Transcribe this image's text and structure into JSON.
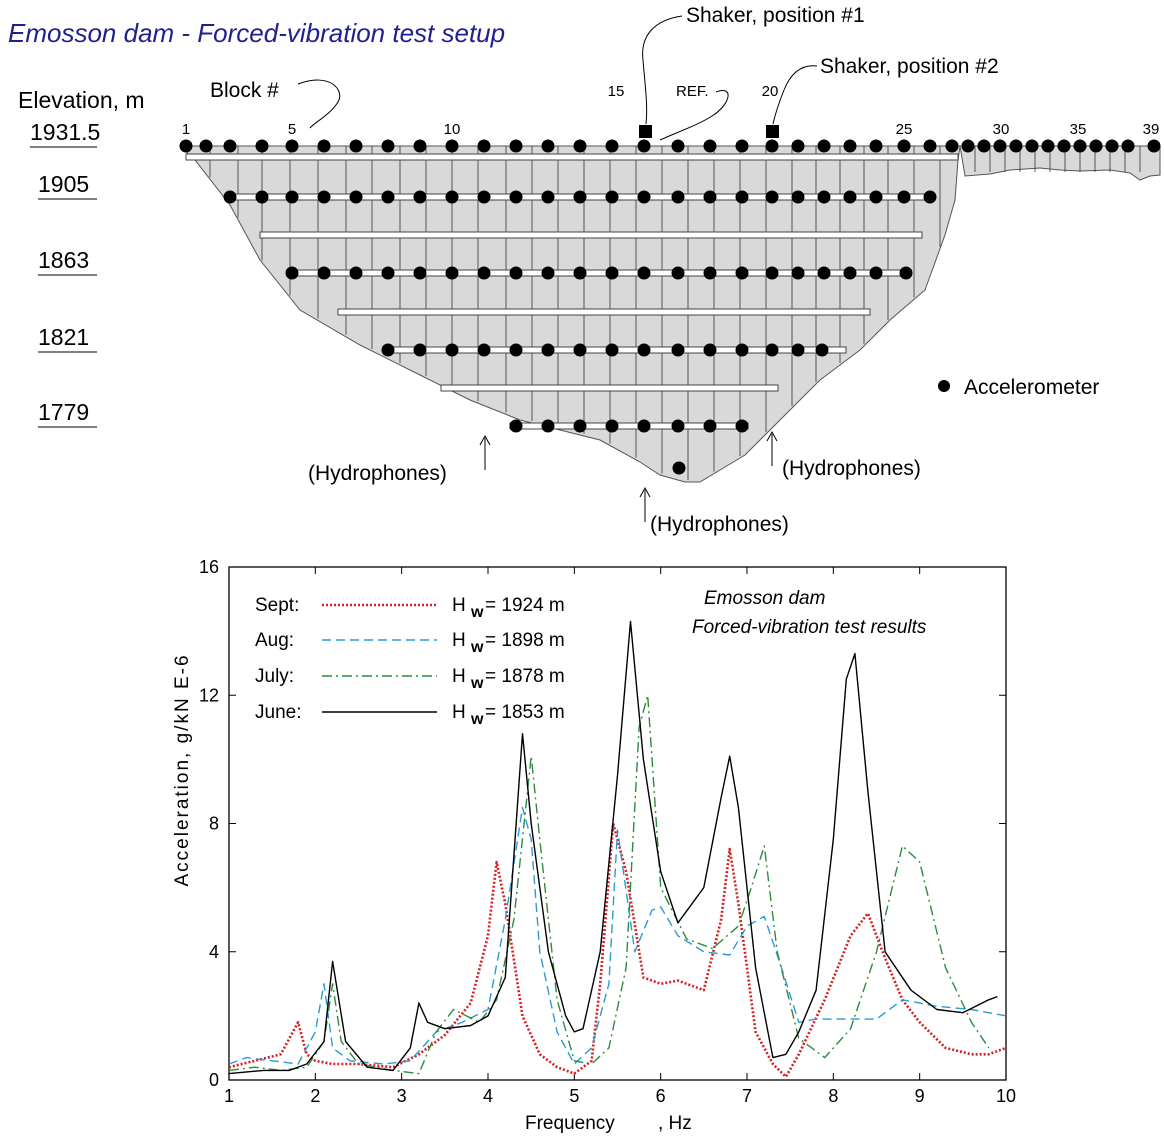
{
  "diagram": {
    "title": "Emosson dam - Forced-vibration test setup",
    "elevation_header": "Elevation, m",
    "elevations": [
      "1931.5",
      "1905",
      "1863",
      "1821",
      "1779"
    ],
    "block_label": "Block #",
    "block_numbers": [
      "1",
      "5",
      "10",
      "15",
      "20",
      "25",
      "30",
      "35",
      "39"
    ],
    "ref_label": "REF.",
    "shaker1_label": "Shaker, position #1",
    "shaker2_label": "Shaker, position #2",
    "hydrophones_label": "(Hydrophones)",
    "accelerometer_legend": "Accelerometer",
    "colors": {
      "dam_fill": "#d9d9d9",
      "title": "#1f1f8f"
    }
  },
  "chart_data": {
    "type": "line",
    "title": "Emosson dam",
    "subtitle": "Forced-vibration test results",
    "xlabel": "Frequency",
    "xunit": ", Hz",
    "ylabel": "Acceleration, g/kN  E-6",
    "xlim": [
      1,
      10
    ],
    "ylim": [
      0,
      16
    ],
    "xticks": [
      1,
      2,
      3,
      4,
      5,
      6,
      7,
      8,
      9,
      10
    ],
    "yticks": [
      0,
      4,
      8,
      12,
      16
    ],
    "grid": false,
    "legend_position": "top-left",
    "series": [
      {
        "name": "Sept:",
        "label_main": "H",
        "label_sub": "w",
        "label_rest": " = 1924 m",
        "color": "#d42020",
        "style": "dotted",
        "x": [
          1,
          1.3,
          1.6,
          1.8,
          1.9,
          2.0,
          2.2,
          2.5,
          2.9,
          3.2,
          3.5,
          3.8,
          4.0,
          4.1,
          4.2,
          4.4,
          4.6,
          4.8,
          5.0,
          5.2,
          5.3,
          5.45,
          5.6,
          5.8,
          6.0,
          6.2,
          6.5,
          6.7,
          6.8,
          6.9,
          7.1,
          7.3,
          7.45,
          7.6,
          7.9,
          8.2,
          8.4,
          8.6,
          8.8,
          9.0,
          9.3,
          9.6,
          9.8,
          10.0
        ],
        "y": [
          0.4,
          0.6,
          0.8,
          1.8,
          0.8,
          0.6,
          0.5,
          0.5,
          0.4,
          0.8,
          1.4,
          2.4,
          4.5,
          6.8,
          5.5,
          2.0,
          0.8,
          0.4,
          0.2,
          0.6,
          3.0,
          8.0,
          6.5,
          3.2,
          3.0,
          3.1,
          2.8,
          5.0,
          7.2,
          5.5,
          1.5,
          0.5,
          0.1,
          0.8,
          2.5,
          4.5,
          5.2,
          3.8,
          2.5,
          1.8,
          1.0,
          0.8,
          0.8,
          1.0
        ]
      },
      {
        "name": "Aug:",
        "label_main": "H",
        "label_sub": "w",
        "label_rest": " = 1898 m",
        "color": "#2b9bd0",
        "style": "dashed",
        "x": [
          1,
          1.2,
          1.5,
          1.8,
          2.0,
          2.1,
          2.2,
          2.4,
          2.8,
          3.1,
          3.4,
          3.7,
          4.0,
          4.2,
          4.4,
          4.5,
          4.6,
          4.8,
          5.0,
          5.2,
          5.4,
          5.5,
          5.7,
          5.9,
          6.0,
          6.2,
          6.5,
          6.8,
          7.0,
          7.2,
          7.4,
          7.6,
          7.8,
          8.2,
          8.5,
          8.8,
          9.2,
          9.6,
          10.0
        ],
        "y": [
          0.5,
          0.7,
          0.6,
          0.5,
          1.5,
          3.0,
          1.0,
          0.6,
          0.5,
          0.6,
          1.5,
          1.8,
          2.2,
          5.0,
          8.5,
          7.5,
          4.0,
          1.5,
          0.5,
          1.0,
          3.0,
          7.8,
          4.0,
          5.3,
          5.4,
          4.5,
          4.0,
          3.9,
          4.8,
          5.1,
          3.5,
          1.8,
          1.9,
          1.9,
          1.9,
          2.5,
          2.3,
          2.2,
          2.0
        ]
      },
      {
        "name": "July:",
        "label_main": "H",
        "label_sub": "w",
        "label_rest": " = 1878 m",
        "color": "#2e8b3e",
        "style": "dashdot",
        "x": [
          1,
          1.3,
          1.6,
          1.9,
          2.1,
          2.2,
          2.3,
          2.5,
          2.9,
          3.2,
          3.4,
          3.6,
          3.9,
          4.1,
          4.3,
          4.5,
          4.6,
          4.8,
          5.0,
          5.2,
          5.4,
          5.6,
          5.75,
          5.85,
          6.0,
          6.3,
          6.6,
          6.9,
          7.05,
          7.2,
          7.35,
          7.6,
          7.9,
          8.2,
          8.5,
          8.8,
          9.0,
          9.3,
          9.6,
          9.8
        ],
        "y": [
          0.3,
          0.4,
          0.3,
          0.4,
          1.2,
          3.0,
          1.2,
          0.5,
          0.3,
          0.2,
          1.5,
          2.2,
          1.8,
          2.5,
          5.0,
          10.1,
          7.5,
          2.5,
          0.6,
          0.5,
          1.0,
          3.5,
          11.0,
          12.0,
          6.0,
          4.4,
          4.1,
          4.8,
          6.0,
          7.3,
          4.0,
          1.3,
          0.7,
          1.6,
          4.0,
          7.3,
          6.8,
          3.5,
          1.8,
          1.0
        ]
      },
      {
        "name": "June:",
        "label_main": "H",
        "label_sub": "w",
        "label_rest": " = 1853 m",
        "color": "#000000",
        "style": "solid",
        "x": [
          1,
          1.4,
          1.7,
          1.9,
          2.1,
          2.2,
          2.35,
          2.6,
          2.9,
          3.1,
          3.2,
          3.3,
          3.5,
          3.8,
          4.0,
          4.2,
          4.3,
          4.4,
          4.5,
          4.7,
          4.9,
          5.0,
          5.1,
          5.3,
          5.5,
          5.65,
          5.8,
          6.0,
          6.2,
          6.5,
          6.7,
          6.8,
          6.9,
          7.1,
          7.3,
          7.45,
          7.6,
          7.8,
          8.0,
          8.15,
          8.25,
          8.4,
          8.6,
          8.9,
          9.2,
          9.5,
          9.8,
          9.9
        ],
        "y": [
          0.2,
          0.3,
          0.3,
          0.5,
          1.2,
          3.7,
          1.2,
          0.4,
          0.3,
          1.0,
          2.4,
          1.8,
          1.6,
          1.7,
          2.0,
          3.2,
          7.0,
          10.8,
          8.0,
          4.0,
          2.0,
          1.5,
          1.6,
          4.0,
          9.5,
          14.3,
          10.0,
          6.5,
          4.9,
          6.0,
          8.8,
          10.1,
          8.5,
          3.5,
          0.7,
          0.8,
          1.5,
          2.8,
          7.5,
          12.5,
          13.3,
          9.0,
          4.0,
          2.8,
          2.2,
          2.1,
          2.5,
          2.6
        ]
      }
    ]
  }
}
